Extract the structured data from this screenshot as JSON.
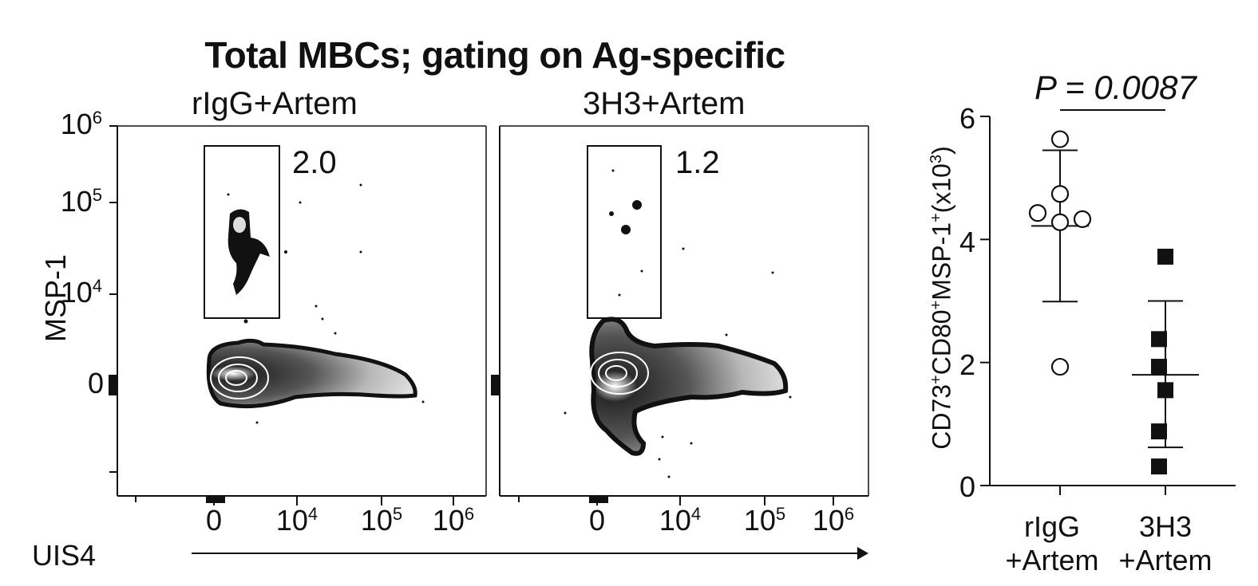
{
  "figure": {
    "title": "Total MBCs; gating on Ag-specific",
    "flow_y_label": "MSP-1",
    "flow_x_label": "UIS4",
    "flow_y_ticks": [
      {
        "label": "10",
        "sup": "6"
      },
      {
        "label": "10",
        "sup": "5"
      },
      {
        "label": "10",
        "sup": "4"
      },
      {
        "label": "0",
        "sup": ""
      }
    ],
    "flow_x_ticks": [
      {
        "label": "0",
        "sup": ""
      },
      {
        "label": "10",
        "sup": "4"
      },
      {
        "label": "10",
        "sup": "5"
      },
      {
        "label": "10",
        "sup": "6"
      }
    ],
    "panels": [
      {
        "title": "rIgG+Artem",
        "gate_percent": "2.0"
      },
      {
        "title": "3H3+Artem",
        "gate_percent": "1.2"
      }
    ]
  },
  "chart_data": {
    "type": "scatter",
    "title": "",
    "ylabel_parts": [
      "CD73",
      "+",
      "CD80",
      "+",
      "MSP-1",
      "+",
      "(x10",
      "3",
      ")"
    ],
    "ylim": [
      0,
      6
    ],
    "yticks": [
      0,
      2,
      4,
      6
    ],
    "categories": [
      {
        "line1": "rIgG",
        "line2": "+Artem"
      },
      {
        "line1": "3H3",
        "line2": "+Artem"
      }
    ],
    "series": [
      {
        "name": "rIgG+Artem",
        "marker": "open-circle",
        "values": [
          5.63,
          4.43,
          4.74,
          4.28,
          4.33,
          1.93
        ],
        "mean": 4.22,
        "sd_upper": 5.45,
        "sd_lower": 2.99
      },
      {
        "name": "3H3+Artem",
        "marker": "filled-square",
        "values": [
          3.72,
          2.38,
          1.93,
          1.55,
          0.88,
          0.31
        ],
        "mean": 1.8,
        "sd_upper": 3.0,
        "sd_lower": 0.62
      }
    ],
    "annotation": {
      "text": "P = 0.0087"
    }
  },
  "colors": {
    "ink": "#111111",
    "white": "#ffffff"
  }
}
